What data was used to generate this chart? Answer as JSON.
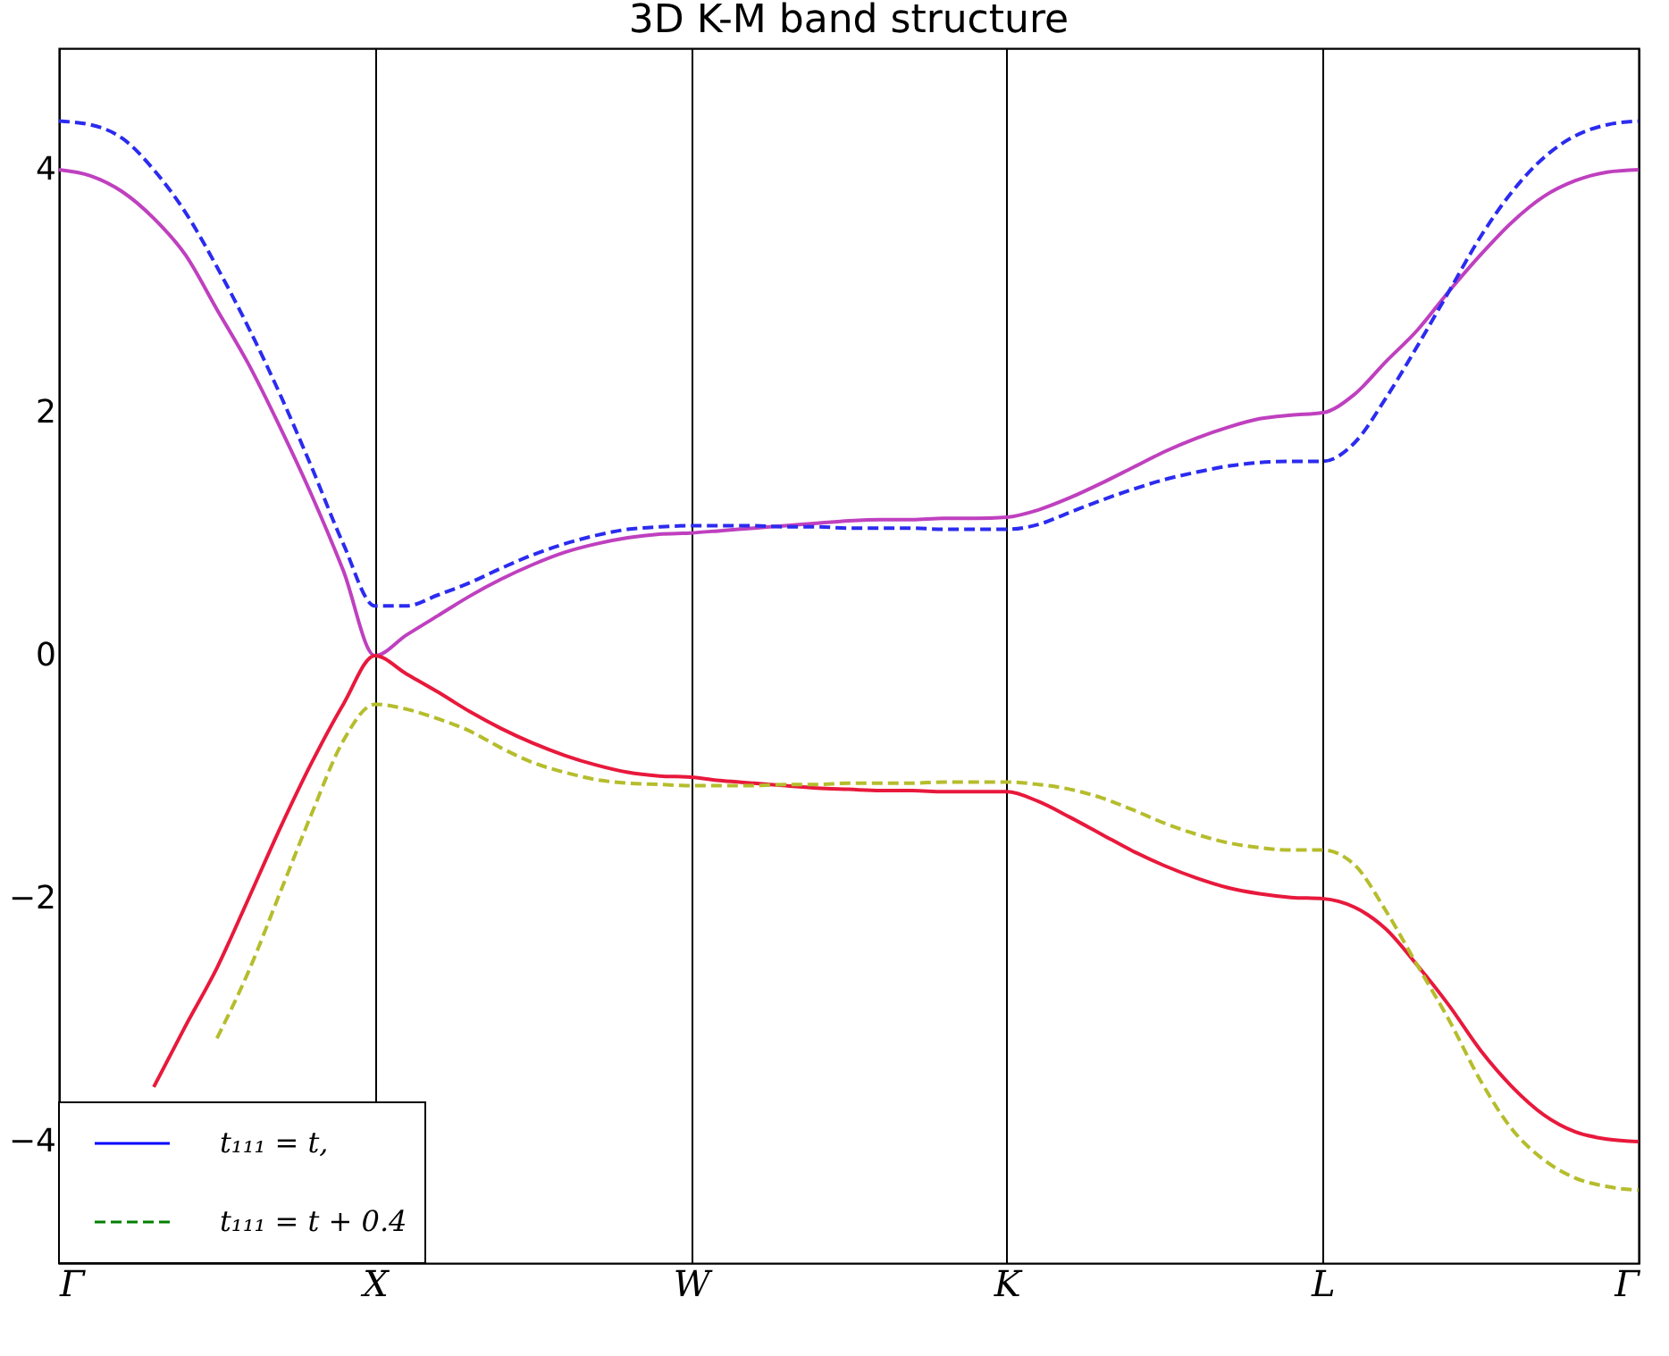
{
  "chart_data": {
    "type": "line",
    "title": "3D K-M band structure",
    "categories": [
      "Γ",
      null,
      null,
      null,
      null,
      null,
      null,
      null,
      null,
      null,
      "X",
      null,
      null,
      null,
      null,
      null,
      null,
      null,
      null,
      null,
      "W",
      null,
      null,
      null,
      null,
      null,
      null,
      null,
      null,
      null,
      "K",
      null,
      null,
      null,
      null,
      null,
      null,
      null,
      null,
      null,
      "L",
      null,
      null,
      null,
      null,
      null,
      null,
      null,
      null,
      null,
      "Γ"
    ],
    "ylim": [
      -5,
      5
    ],
    "yticks": [
      -4,
      -2,
      0,
      2,
      4
    ],
    "grid": "x",
    "legend": "bottom left",
    "marker": "none",
    "series": [
      {
        "color": "#bf40bf",
        "line_style": "solid",
        "values": [
          4.0,
          3.95,
          3.82,
          3.6,
          3.3,
          2.85,
          2.4,
          1.88,
          1.32,
          0.7,
          0,
          0.17,
          0.33,
          0.49,
          0.63,
          0.75,
          0.85,
          0.92,
          0.97,
          1.0,
          1.01,
          1.03,
          1.05,
          1.07,
          1.09,
          1.11,
          1.12,
          1.12,
          1.13,
          1.13,
          1.14,
          1.2,
          1.3,
          1.42,
          1.55,
          1.68,
          1.79,
          1.88,
          1.95,
          1.98,
          2.0,
          2.15,
          2.42,
          2.68,
          3.0,
          3.3,
          3.57,
          3.78,
          3.91,
          3.98,
          4.0
        ]
      },
      {
        "color": "#e8193c",
        "line_style": "solid",
        "values": [
          null,
          null,
          null,
          -3.55,
          -3.05,
          -2.57,
          -2.0,
          -1.42,
          -0.88,
          -0.4,
          0,
          -0.15,
          -0.3,
          -0.46,
          -0.6,
          -0.72,
          -0.82,
          -0.9,
          -0.96,
          -0.99,
          -1.0,
          -1.03,
          -1.05,
          -1.07,
          -1.09,
          -1.1,
          -1.11,
          -1.11,
          -1.12,
          -1.12,
          -1.12,
          -1.2,
          -1.33,
          -1.47,
          -1.61,
          -1.73,
          -1.83,
          -1.91,
          -1.96,
          -1.99,
          -2.0,
          -2.07,
          -2.25,
          -2.55,
          -2.88,
          -3.25,
          -3.55,
          -3.78,
          -3.92,
          -3.98,
          -4.0
        ]
      },
      {
        "color": "#2b2bf0",
        "line_style": "dashed",
        "values": [
          4.4,
          4.37,
          4.26,
          4.0,
          3.65,
          3.2,
          2.7,
          2.15,
          1.55,
          0.92,
          0.41,
          0.41,
          0.5,
          0.6,
          0.72,
          0.83,
          0.92,
          0.99,
          1.04,
          1.06,
          1.07,
          1.07,
          1.07,
          1.06,
          1.06,
          1.05,
          1.05,
          1.05,
          1.04,
          1.04,
          1.04,
          1.08,
          1.18,
          1.28,
          1.37,
          1.45,
          1.51,
          1.56,
          1.59,
          1.6,
          1.6,
          1.75,
          2.12,
          2.55,
          3.0,
          3.45,
          3.82,
          4.1,
          4.28,
          4.37,
          4.4
        ]
      },
      {
        "color": "#b5bd2c",
        "line_style": "dashed",
        "values": [
          null,
          null,
          null,
          null,
          null,
          -3.15,
          -2.6,
          -1.95,
          -1.3,
          -0.7,
          -0.4,
          -0.44,
          -0.52,
          -0.62,
          -0.76,
          -0.88,
          -0.96,
          -1.02,
          -1.05,
          -1.06,
          -1.07,
          -1.07,
          -1.07,
          -1.06,
          -1.06,
          -1.05,
          -1.05,
          -1.05,
          -1.04,
          -1.04,
          -1.04,
          -1.06,
          -1.1,
          -1.17,
          -1.27,
          -1.38,
          -1.47,
          -1.54,
          -1.58,
          -1.6,
          -1.6,
          -1.72,
          -2.1,
          -2.55,
          -3.0,
          -3.5,
          -3.9,
          -4.15,
          -4.3,
          -4.37,
          -4.4
        ]
      },
      {
        "name": "t₁₁₁ = t,",
        "color": "#0000ff",
        "line_style": "solid",
        "values": [
          null,
          null,
          null,
          null,
          null,
          null,
          null,
          null,
          null,
          null,
          null,
          null,
          null,
          null,
          null,
          null,
          null,
          null,
          null,
          null,
          null,
          null,
          null,
          null,
          null,
          null,
          null,
          null,
          null,
          null,
          null,
          null,
          null,
          null,
          null,
          null,
          null,
          null,
          null,
          null,
          null,
          null,
          null,
          null,
          null,
          null,
          null,
          null,
          null,
          null,
          null
        ]
      },
      {
        "name": "t₁₁₁ = t + 0.4",
        "color": "#008000",
        "line_style": "dashed",
        "values": [
          null,
          null,
          null,
          null,
          null,
          null,
          null,
          null,
          null,
          null,
          null,
          null,
          null,
          null,
          null,
          null,
          null,
          null,
          null,
          null,
          null,
          null,
          null,
          null,
          null,
          null,
          null,
          null,
          null,
          null,
          null,
          null,
          null,
          null,
          null,
          null,
          null,
          null,
          null,
          null,
          null,
          null,
          null,
          null,
          null,
          null,
          null,
          null,
          null,
          null,
          null
        ]
      }
    ]
  }
}
